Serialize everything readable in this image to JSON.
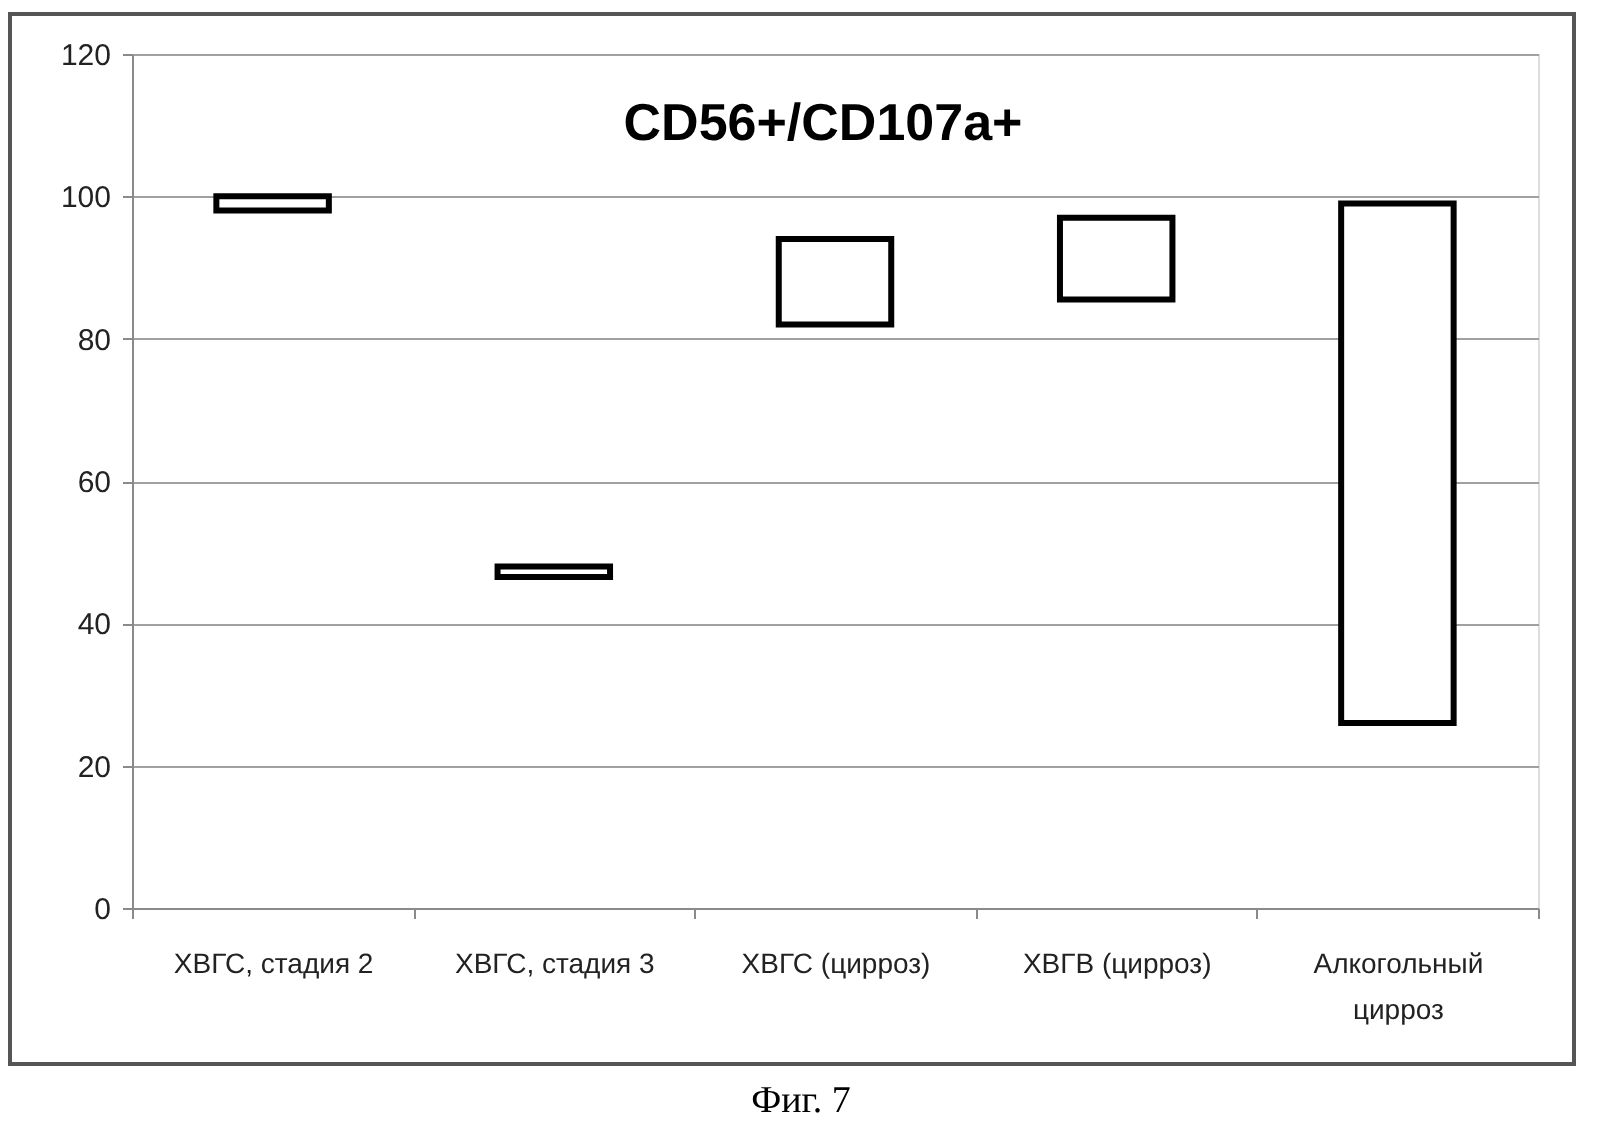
{
  "chart_data": {
    "type": "bar",
    "title": "CD56+/CD107a+",
    "categories": [
      "ХВГС, стадия 2",
      "ХВГС, стадия 3",
      "ХВГС (цирроз)",
      "ХВГВ (цирроз)",
      "Алкогольный цирроз"
    ],
    "base": [
      98,
      46.5,
      82,
      85.5,
      26
    ],
    "values": [
      2,
      1.5,
      12,
      11.5,
      73
    ],
    "color": "#ffffff",
    "ylim": [
      0,
      120
    ],
    "yticks": [
      0,
      20,
      40,
      60,
      80,
      100,
      120
    ],
    "grid": "y",
    "annotations": [
      "Фиг. 7"
    ]
  }
}
